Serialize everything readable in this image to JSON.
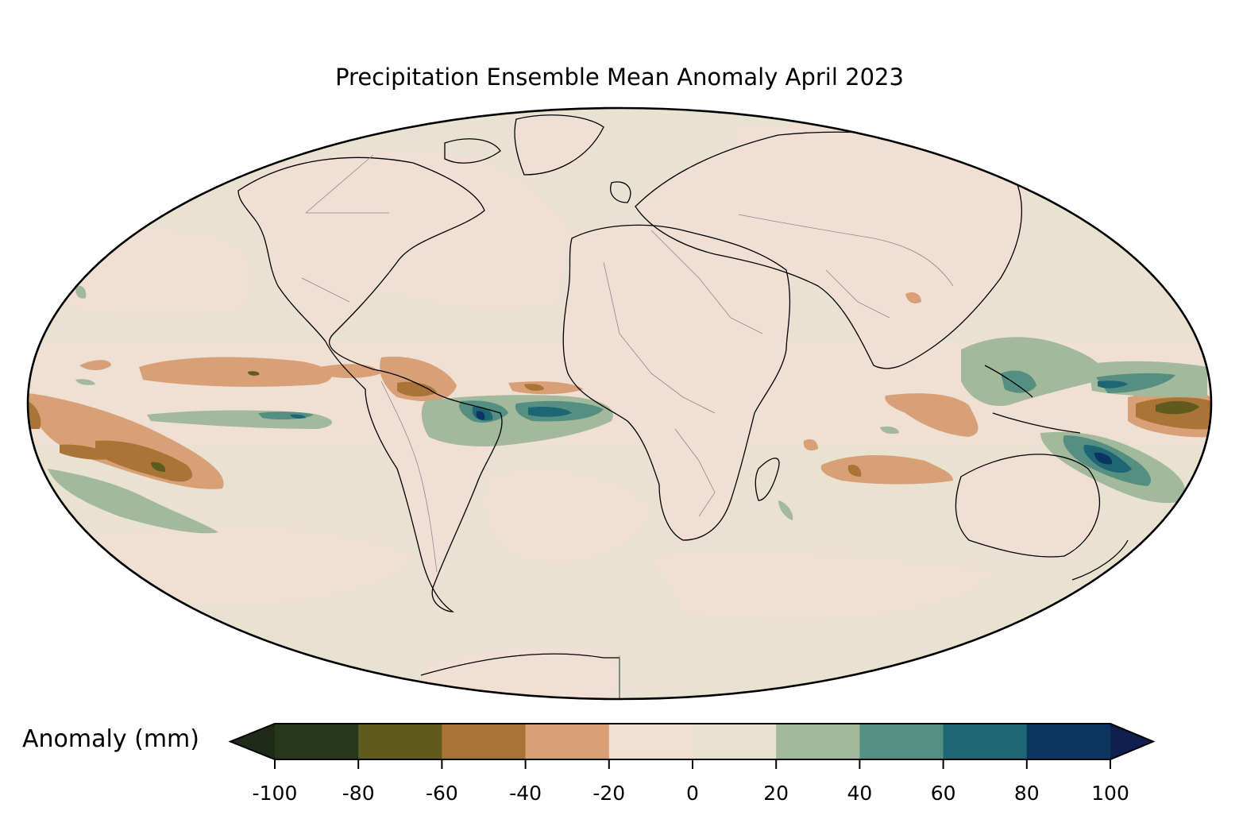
{
  "title": "Precipitation Ensemble Mean Anomaly April 2023",
  "colorbar": {
    "label": "Anomaly (mm)",
    "ticks": [
      "-100",
      "-80",
      "-60",
      "-40",
      "-20",
      "0",
      "20",
      "40",
      "60",
      "80",
      "100"
    ],
    "extend": "both",
    "colors": [
      "#28361a",
      "#5f5b1f",
      "#a97536",
      "#d8a076",
      "#f1dfd3",
      "#e9e2d1",
      "#a3b99c",
      "#548f82",
      "#1e6674",
      "#0c3461"
    ],
    "under_color": "#1f2a18",
    "over_color": "#0f1f4f"
  },
  "colors": {
    "ocean_base": "#e9e2d1",
    "land_base": "#f1dfd3",
    "coastline": "#000000",
    "borders": "#8a8a8a"
  }
}
